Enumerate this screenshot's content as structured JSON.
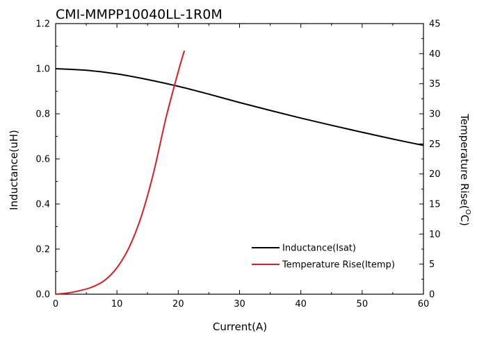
{
  "chart_data": {
    "type": "line",
    "title": "CMI-MMPP10040LL-1R0M",
    "xlabel": "Current(A)",
    "ylabel": "Inductance(uH)",
    "y2label": "Temperature Rise(",
    "y2label_sup": "O",
    "y2label_unit": "C)",
    "xlim": [
      0,
      60
    ],
    "ylim": [
      0,
      1.2
    ],
    "y2lim": [
      0,
      45
    ],
    "xticks": [
      0,
      10,
      20,
      30,
      40,
      50,
      60
    ],
    "yticks": [
      "0.0",
      "0.2",
      "0.4",
      "0.6",
      "0.8",
      "1.0",
      "1.2"
    ],
    "y2ticks": [
      0,
      5,
      10,
      15,
      20,
      25,
      30,
      35,
      40,
      45
    ],
    "legend_position": "bottom-right",
    "series": [
      {
        "name": "Inductance(Isat)",
        "axis": "left",
        "color": "#000000",
        "x": [
          0,
          5,
          10,
          15,
          20,
          25,
          30,
          35,
          40,
          45,
          50,
          55,
          60
        ],
        "y": [
          1.0,
          0.993,
          0.977,
          0.952,
          0.922,
          0.887,
          0.85,
          0.815,
          0.781,
          0.749,
          0.718,
          0.688,
          0.66
        ]
      },
      {
        "name": "Temperature Rise(Itemp)",
        "axis": "right",
        "color": "#e31a1c",
        "x": [
          0,
          2,
          4,
          6,
          8,
          10,
          12,
          14,
          16,
          18,
          20,
          21
        ],
        "y": [
          0,
          0.2,
          0.6,
          1.2,
          2.3,
          4.4,
          7.8,
          13.0,
          20.3,
          29.3,
          37.0,
          40.5
        ]
      }
    ]
  }
}
